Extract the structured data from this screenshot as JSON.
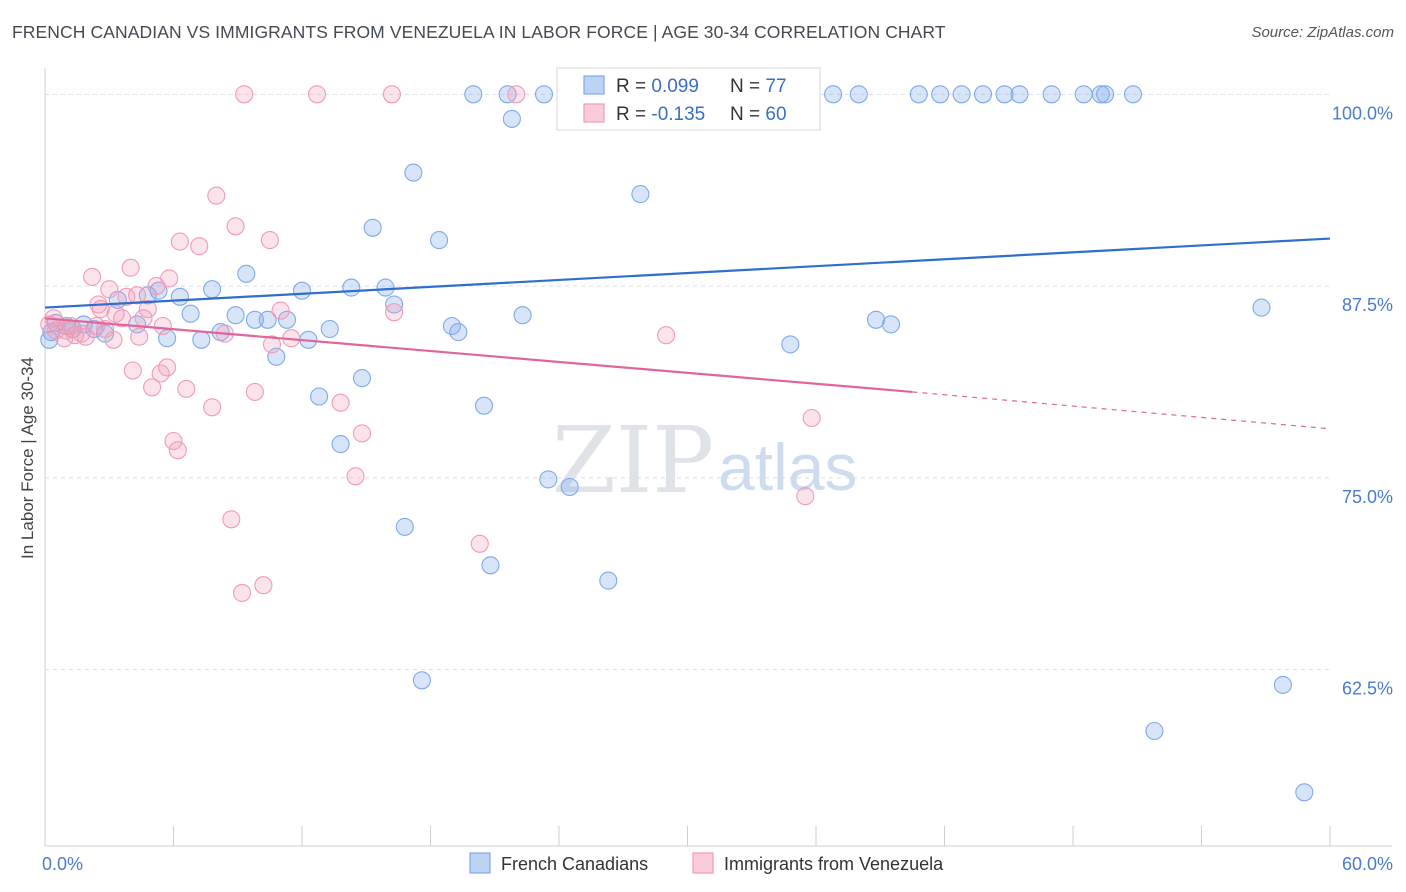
{
  "title": "FRENCH CANADIAN VS IMMIGRANTS FROM VENEZUELA IN LABOR FORCE | AGE 30-34 CORRELATION CHART",
  "source": "Source: ZipAtlas.com",
  "watermark": {
    "zip": "ZIP",
    "atlas": "atlas"
  },
  "legend_box": {
    "rows": [
      {
        "r_label": "R = ",
        "r_value": "0.099",
        "n_label": "N = ",
        "n_value": "77"
      },
      {
        "r_label": "R = ",
        "r_value": "-0.135",
        "n_label": "N = ",
        "n_value": "60"
      }
    ]
  },
  "chart_data": {
    "type": "scatter",
    "xlabel": "",
    "ylabel": "In Labor Force | Age 30-34",
    "xlim": [
      0,
      60
    ],
    "ylim": [
      51,
      101
    ],
    "x_tick_labels": [
      {
        "x": 0,
        "label": "0.0%"
      },
      {
        "x": 60,
        "label": "60.0%"
      }
    ],
    "y_ticks": [
      {
        "y": 100,
        "label": "100.0%"
      },
      {
        "y": 87.5,
        "label": "87.5%"
      },
      {
        "y": 75,
        "label": "75.0%"
      },
      {
        "y": 62.5,
        "label": "62.5%"
      }
    ],
    "legend_placement": "top-center",
    "bottom_legend_placement": "bottom-center",
    "grid": true,
    "colors": {
      "french_canadians": "#7eaaea",
      "venezuela": "#f29ab8",
      "french_canadians_line": "#2f6fcb",
      "venezuela_line": "#e0659a"
    },
    "series": [
      {
        "name": "French Canadians",
        "key": "french_canadians",
        "trend": {
          "x": [
            0,
            60
          ],
          "y": [
            86.1,
            90.6
          ]
        },
        "points": [
          [
            0.3,
            84.5
          ],
          [
            0.5,
            85.1
          ],
          [
            1.0,
            84.9
          ],
          [
            1.3,
            84.7
          ],
          [
            1.8,
            85.0
          ],
          [
            2.8,
            84.4
          ],
          [
            3.4,
            86.6
          ],
          [
            4.3,
            85.0
          ],
          [
            5.3,
            87.2
          ],
          [
            5.7,
            84.1
          ],
          [
            6.3,
            86.8
          ],
          [
            6.8,
            85.7
          ],
          [
            7.3,
            84.0
          ],
          [
            7.8,
            87.3
          ],
          [
            8.2,
            84.5
          ],
          [
            8.9,
            85.6
          ],
          [
            9.4,
            88.3
          ],
          [
            9.8,
            85.3
          ],
          [
            10.4,
            85.3
          ],
          [
            11.3,
            85.3
          ],
          [
            10.8,
            82.9
          ],
          [
            12.0,
            87.2
          ],
          [
            12.3,
            84.0
          ],
          [
            12.8,
            80.3
          ],
          [
            13.3,
            84.7
          ],
          [
            13.8,
            77.2
          ],
          [
            14.3,
            87.4
          ],
          [
            14.8,
            81.5
          ],
          [
            15.3,
            91.3
          ],
          [
            15.9,
            87.4
          ],
          [
            16.3,
            86.3
          ],
          [
            16.8,
            71.8
          ],
          [
            17.2,
            94.9
          ],
          [
            17.6,
            61.8
          ],
          [
            18.4,
            90.5
          ],
          [
            19.0,
            84.9
          ],
          [
            19.3,
            84.5
          ],
          [
            20.0,
            100.0
          ],
          [
            20.5,
            79.7
          ],
          [
            20.8,
            69.3
          ],
          [
            21.6,
            100.0
          ],
          [
            21.8,
            98.4
          ],
          [
            22.3,
            85.6
          ],
          [
            23.3,
            100.0
          ],
          [
            23.5,
            74.9
          ],
          [
            24.5,
            74.4
          ],
          [
            25.8,
            100.0
          ],
          [
            26.3,
            68.3
          ],
          [
            27.8,
            93.5
          ],
          [
            28.3,
            100.0
          ],
          [
            28.8,
            100.0
          ],
          [
            32.3,
            100.0
          ],
          [
            33.0,
            100.0
          ],
          [
            34.8,
            83.7
          ],
          [
            35.3,
            100.0
          ],
          [
            36.8,
            100.0
          ],
          [
            38.0,
            100.0
          ],
          [
            38.8,
            85.3
          ],
          [
            39.5,
            85.0
          ],
          [
            40.8,
            100.0
          ],
          [
            41.8,
            100.0
          ],
          [
            42.8,
            100.0
          ],
          [
            43.8,
            100.0
          ],
          [
            44.8,
            100.0
          ],
          [
            45.5,
            100.0
          ],
          [
            47.0,
            100.0
          ],
          [
            48.5,
            100.0
          ],
          [
            49.3,
            100.0
          ],
          [
            49.5,
            100.0
          ],
          [
            50.8,
            100.0
          ],
          [
            56.8,
            86.1
          ],
          [
            57.8,
            61.5
          ],
          [
            51.8,
            58.5
          ],
          [
            58.8,
            54.5
          ],
          [
            0.2,
            84.0
          ],
          [
            2.3,
            84.7
          ],
          [
            4.8,
            86.9
          ]
        ]
      },
      {
        "name": "Immigrants from Venezuela",
        "key": "venezuela",
        "trend": {
          "x": [
            0,
            40.5
          ],
          "y": [
            85.4,
            80.6
          ]
        },
        "trend_dashed": {
          "x": [
            40.5,
            60
          ],
          "y": [
            80.6,
            78.2
          ]
        },
        "points": [
          [
            0.2,
            85.0
          ],
          [
            0.4,
            85.4
          ],
          [
            0.5,
            84.6
          ],
          [
            0.9,
            84.1
          ],
          [
            1.2,
            84.9
          ],
          [
            1.4,
            84.3
          ],
          [
            1.7,
            84.4
          ],
          [
            2.2,
            88.1
          ],
          [
            2.4,
            84.9
          ],
          [
            2.5,
            86.3
          ],
          [
            2.8,
            84.7
          ],
          [
            3.0,
            87.3
          ],
          [
            3.3,
            85.7
          ],
          [
            3.6,
            85.4
          ],
          [
            3.8,
            86.8
          ],
          [
            4.0,
            88.7
          ],
          [
            4.1,
            82.0
          ],
          [
            4.4,
            84.2
          ],
          [
            4.6,
            85.4
          ],
          [
            4.8,
            86.0
          ],
          [
            5.0,
            80.9
          ],
          [
            5.2,
            87.5
          ],
          [
            5.4,
            81.8
          ],
          [
            5.7,
            82.2
          ],
          [
            5.8,
            88.0
          ],
          [
            6.0,
            77.4
          ],
          [
            6.2,
            76.8
          ],
          [
            6.3,
            90.4
          ],
          [
            6.6,
            80.8
          ],
          [
            7.2,
            90.1
          ],
          [
            7.8,
            79.6
          ],
          [
            8.0,
            93.4
          ],
          [
            8.4,
            84.4
          ],
          [
            8.7,
            72.3
          ],
          [
            8.9,
            91.4
          ],
          [
            9.2,
            67.5
          ],
          [
            9.3,
            100.0
          ],
          [
            9.8,
            80.6
          ],
          [
            10.2,
            68.0
          ],
          [
            10.5,
            90.5
          ],
          [
            10.6,
            83.7
          ],
          [
            11.0,
            85.9
          ],
          [
            11.5,
            84.1
          ],
          [
            12.7,
            100.0
          ],
          [
            13.8,
            79.9
          ],
          [
            14.5,
            75.1
          ],
          [
            14.8,
            77.9
          ],
          [
            16.2,
            100.0
          ],
          [
            16.3,
            85.8
          ],
          [
            20.3,
            70.7
          ],
          [
            22.0,
            100.0
          ],
          [
            29.0,
            84.3
          ],
          [
            35.5,
            73.8
          ],
          [
            35.8,
            78.9
          ],
          [
            1.0,
            84.6
          ],
          [
            2.6,
            86.0
          ],
          [
            3.2,
            84.0
          ],
          [
            4.3,
            86.9
          ],
          [
            5.5,
            84.9
          ],
          [
            1.9,
            84.2
          ]
        ]
      }
    ]
  }
}
